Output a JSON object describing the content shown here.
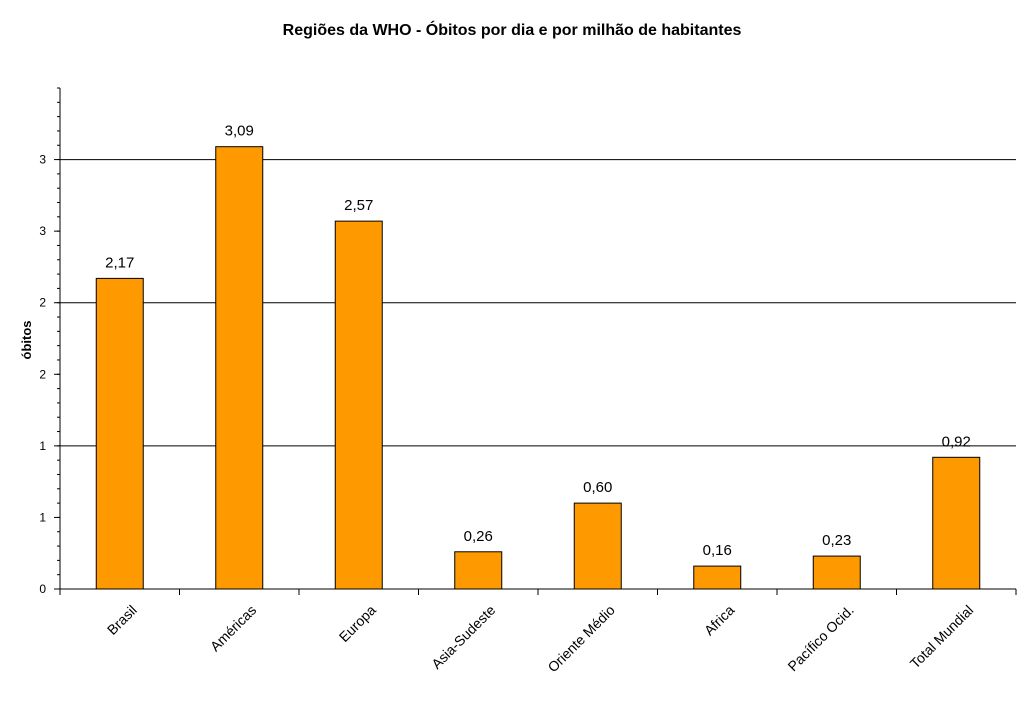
{
  "chart_data": {
    "type": "bar",
    "title": "Regiões da WHO - Óbitos por dia e por milhão de habitantes",
    "xlabel": "",
    "ylabel": "óbitos",
    "categories": [
      "Brasil",
      "Américas",
      "Europa",
      "Asia-Sudeste",
      "Oriente Médio",
      "Africa",
      "Pacífico Ocid.",
      "Total Mundial"
    ],
    "values": [
      2.17,
      3.09,
      2.57,
      0.26,
      0.6,
      0.16,
      0.23,
      0.92
    ],
    "data_labels": [
      "2,17",
      "3,09",
      "2,57",
      "0,26",
      "0,60",
      "0,16",
      "0,23",
      "0,92"
    ],
    "ytick_labels": [
      "0",
      "1",
      "1",
      "2",
      "2",
      "3",
      "3"
    ],
    "ylim": [
      0,
      3.5
    ],
    "grid": true,
    "legend": "none",
    "bar_color": "#FF9900"
  }
}
